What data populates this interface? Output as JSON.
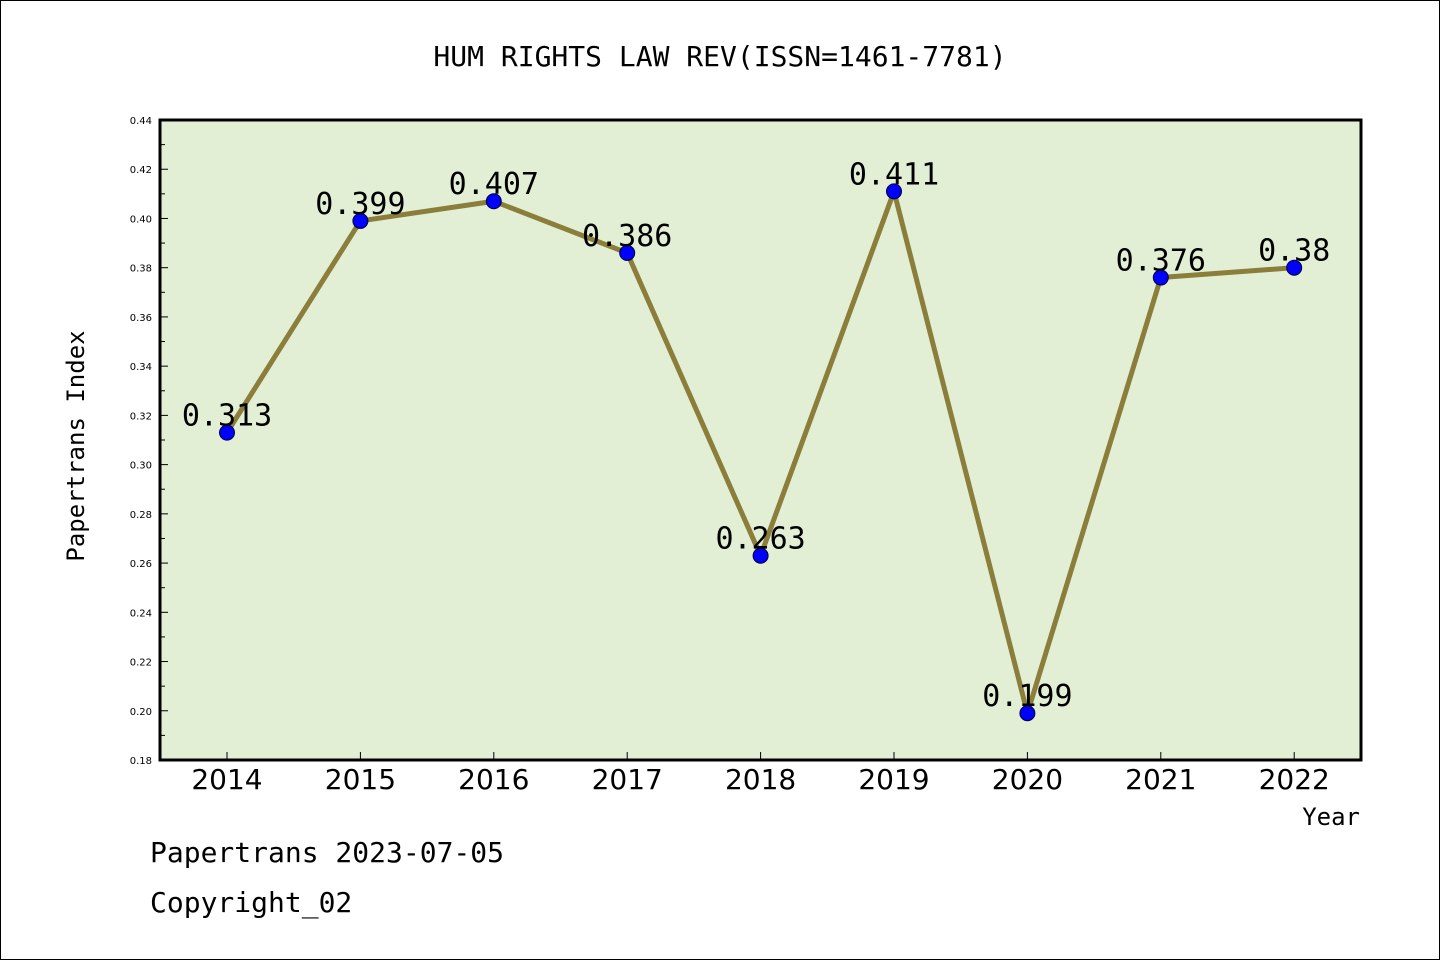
{
  "chart_data": {
    "type": "line",
    "title": "HUM RIGHTS LAW REV(ISSN=1461-7781)",
    "xlabel": "Year",
    "ylabel": "Papertrans Index",
    "categories": [
      "2014",
      "2015",
      "2016",
      "2017",
      "2018",
      "2019",
      "2020",
      "2021",
      "2022"
    ],
    "series": [
      {
        "values": [
          0.313,
          0.399,
          0.407,
          0.386,
          0.263,
          0.411,
          0.199,
          0.376,
          0.38
        ],
        "labels": [
          "0.313",
          "0.399",
          "0.407",
          "0.386",
          "0.263",
          "0.411",
          "0.199",
          "0.376",
          "0.38"
        ]
      }
    ],
    "ylim": [
      0.18,
      0.44
    ],
    "yticks": [
      "0.18",
      "0.20",
      "0.22",
      "0.24",
      "0.26",
      "0.28",
      "0.30",
      "0.32",
      "0.34",
      "0.36",
      "0.38",
      "0.40",
      "0.42",
      "0.44"
    ],
    "grid": false,
    "colors": {
      "plot_background": "#e2efd4",
      "line": "#8b7d3a",
      "marker": "#0000ff"
    }
  },
  "footer": {
    "line1": "Papertrans 2023-07-05",
    "line2": "Copyright_02"
  }
}
